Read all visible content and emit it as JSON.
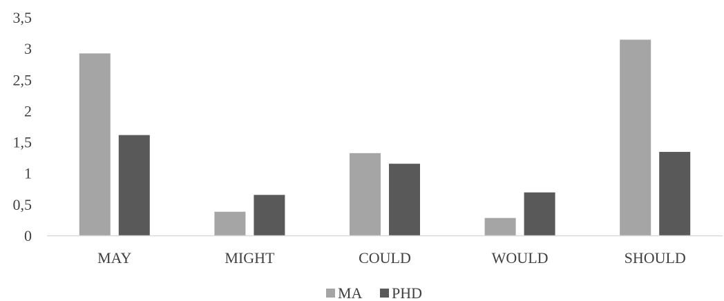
{
  "chart_data": {
    "type": "bar",
    "categories": [
      "MAY",
      "MIGHT",
      "COULD",
      "WOULD",
      "SHOULD"
    ],
    "series": [
      {
        "name": "MA",
        "color": "#a5a5a5",
        "values": [
          2.92,
          0.38,
          1.32,
          0.28,
          3.14
        ]
      },
      {
        "name": "PHD",
        "color": "#595959",
        "values": [
          1.61,
          0.65,
          1.15,
          0.69,
          1.34
        ]
      }
    ],
    "y_ticks": [
      "0",
      "0,5",
      "1",
      "1,5",
      "2",
      "2,5",
      "3",
      "3,5"
    ],
    "ylim": [
      0,
      3.5
    ],
    "grid": false,
    "legend_position": "bottom"
  }
}
